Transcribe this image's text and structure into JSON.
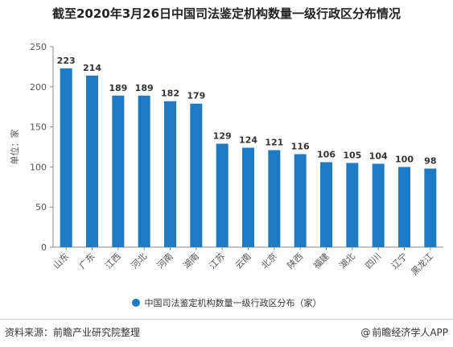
{
  "header": {
    "title": "截至2020年3月26日中国司法鉴定机构数量一级行政区分布情况"
  },
  "chart_data": {
    "type": "bar",
    "title": "截至2020年3月26日中国司法鉴定机构数量一级行政区分布情况",
    "ylabel": "单位：家",
    "xlabel": "",
    "ylim": [
      0,
      250
    ],
    "yticks": [
      0,
      50,
      100,
      150,
      200,
      250
    ],
    "grid": false,
    "legend_position": "bottom",
    "categories": [
      "山东",
      "广东",
      "江西",
      "河北",
      "河南",
      "湖南",
      "江苏",
      "云南",
      "北京",
      "陕西",
      "福建",
      "湖北",
      "四川",
      "辽宁",
      "黑龙江"
    ],
    "series": [
      {
        "name": "中国司法鉴定机构数量一级行政区分布（家）",
        "color": "#1f7ac4",
        "values": [
          223,
          214,
          189,
          189,
          182,
          179,
          129,
          124,
          121,
          116,
          106,
          105,
          104,
          100,
          98
        ]
      }
    ]
  },
  "legend": {
    "label": "中国司法鉴定机构数量一级行政区分布（家）"
  },
  "footer": {
    "source": "资料来源：前瞻产业研究院整理",
    "brand": "前瞻经济学人APP",
    "brand_icon": "at-icon"
  }
}
